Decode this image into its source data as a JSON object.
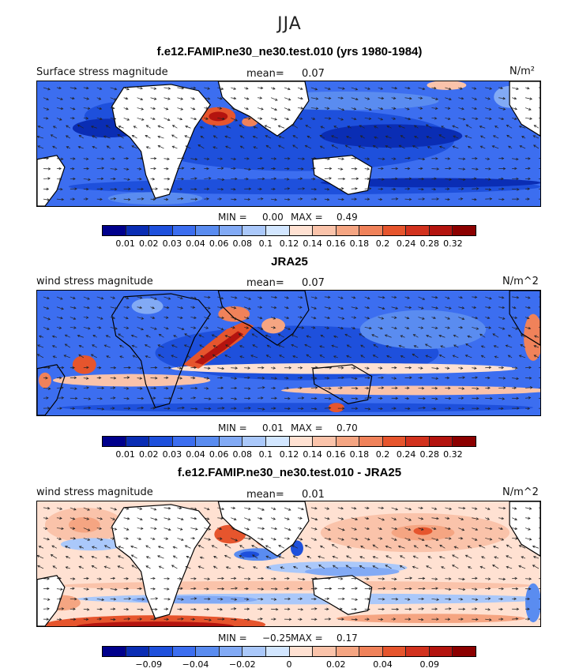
{
  "season": "JJA",
  "panels": [
    {
      "title": "f.e12.FAMIP.ne30_ne30.test.010 (yrs 1980-1984)",
      "var_label": "Surface stress magnitude",
      "mean_label": "mean=",
      "mean_value": "0.07",
      "units": "N/m²",
      "min_label": "MIN =",
      "min_value": "0.00",
      "max_label": "MAX =",
      "max_value": "0.49"
    },
    {
      "title": "JRA25",
      "var_label": "wind stress magnitude",
      "mean_label": "mean=",
      "mean_value": "0.07",
      "units": "N/m^2",
      "min_label": "MIN =",
      "min_value": "0.01",
      "max_label": "MAX =",
      "max_value": "0.70"
    },
    {
      "title": "f.e12.FAMIP.ne30_ne30.test.010 - JRA25",
      "var_label": "wind stress magnitude",
      "mean_label": "mean=",
      "mean_value": "0.01",
      "units": "N/m^2",
      "min_label": "MIN =",
      "min_value": "−0.25",
      "max_label": "MAX =",
      "max_value": "0.17"
    }
  ],
  "colorbars": {
    "abs": {
      "colors": [
        "#00008c",
        "#0a2db4",
        "#1e50dc",
        "#3c6ef0",
        "#5a8cf0",
        "#82aaf5",
        "#aac8fa",
        "#d2e6ff",
        "#ffe1d2",
        "#fac3aa",
        "#f5a582",
        "#f0825a",
        "#e6552d",
        "#d2321e",
        "#b4140f",
        "#8c0000"
      ],
      "ticks": [
        "0.01",
        "0.02",
        "0.03",
        "0.04",
        "0.06",
        "0.08",
        "0.1",
        "0.12",
        "0.14",
        "0.16",
        "0.18",
        "0.2",
        "0.24",
        "0.28",
        "0.32"
      ]
    },
    "diff": {
      "colors": [
        "#00008c",
        "#0a2db4",
        "#1e50dc",
        "#3c6ef0",
        "#5a8cf0",
        "#82aaf5",
        "#aac8fa",
        "#d2e6ff",
        "#ffe1d2",
        "#fac3aa",
        "#f5a582",
        "#f0825a",
        "#e6552d",
        "#d2321e",
        "#b4140f",
        "#8c0000"
      ],
      "ticks": [
        "",
        "−0.09",
        "",
        "−0.04",
        "",
        "−0.02",
        "",
        "0",
        "",
        "0.02",
        "",
        "0.04",
        "",
        "0.09",
        ""
      ]
    }
  },
  "chart_data": [
    {
      "type": "heatmap",
      "title": "f.e12.FAMIP.ne30_ne30.test.010 (yrs 1980-1984)",
      "variable": "Surface stress magnitude",
      "units": "N/m²",
      "mean": 0.07,
      "min": 0.0,
      "max": 0.49,
      "contour_levels": [
        0.01,
        0.02,
        0.03,
        0.04,
        0.06,
        0.08,
        0.1,
        0.12,
        0.14,
        0.16,
        0.18,
        0.2,
        0.24,
        0.28,
        0.32
      ],
      "xrange_lon": [
        0,
        360
      ],
      "yrange_lat": [
        -40,
        40
      ]
    },
    {
      "type": "heatmap",
      "title": "JRA25",
      "variable": "wind stress magnitude",
      "units": "N/m^2",
      "mean": 0.07,
      "min": 0.01,
      "max": 0.7,
      "contour_levels": [
        0.01,
        0.02,
        0.03,
        0.04,
        0.06,
        0.08,
        0.1,
        0.12,
        0.14,
        0.16,
        0.18,
        0.2,
        0.24,
        0.28,
        0.32
      ],
      "xrange_lon": [
        0,
        360
      ],
      "yrange_lat": [
        -40,
        40
      ]
    },
    {
      "type": "heatmap",
      "title": "f.e12.FAMIP.ne30_ne30.test.010 - JRA25",
      "variable": "wind stress magnitude",
      "units": "N/m^2",
      "mean": 0.01,
      "min": -0.25,
      "max": 0.17,
      "contour_levels": [
        -0.09,
        -0.04,
        -0.02,
        0,
        0.02,
        0.04,
        0.09
      ],
      "xrange_lon": [
        0,
        360
      ],
      "yrange_lat": [
        -40,
        40
      ]
    }
  ]
}
